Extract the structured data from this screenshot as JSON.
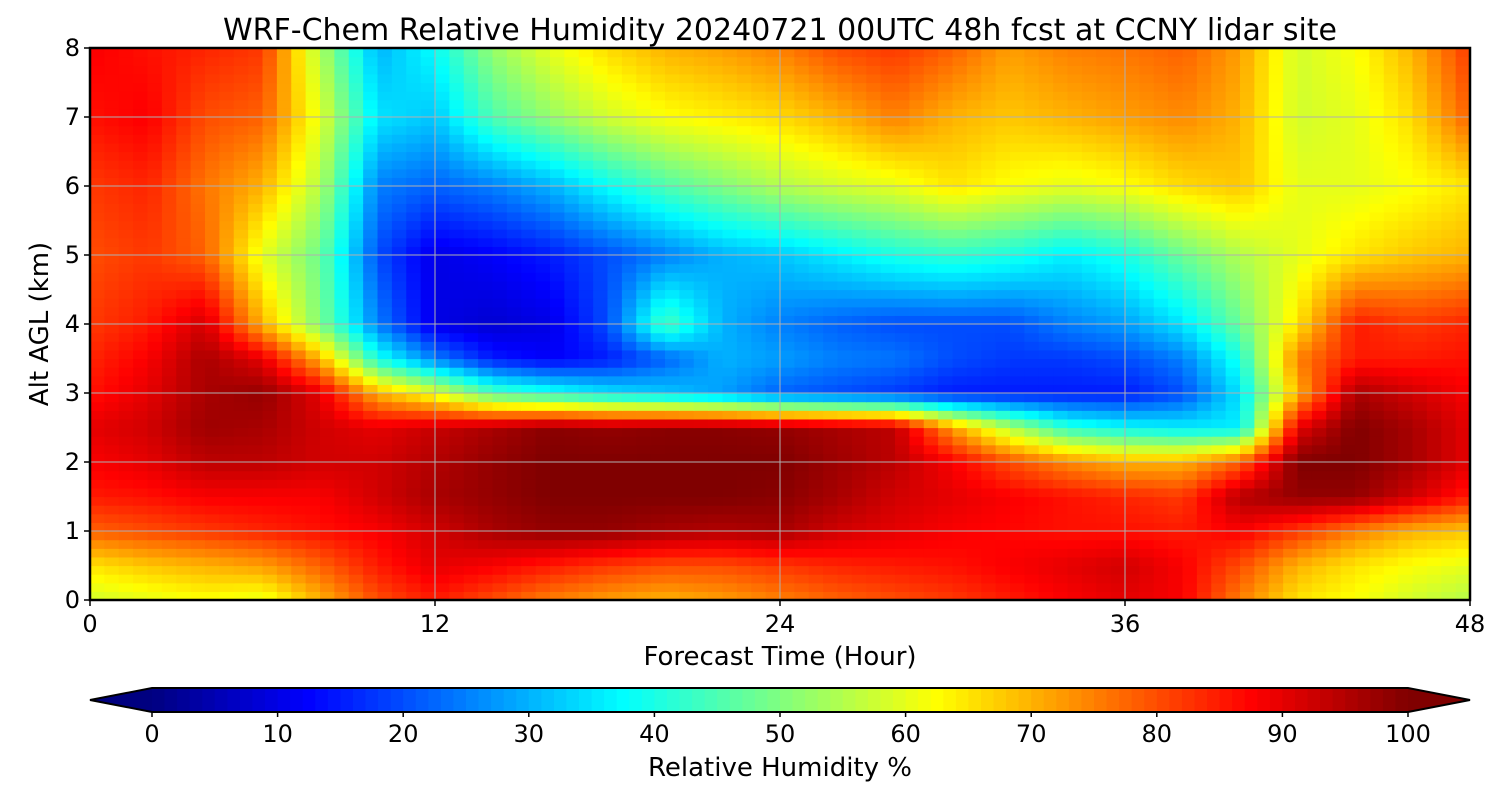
{
  "chart_data": {
    "type": "heatmap",
    "title": "WRF-Chem Relative Humidity 20240721 00UTC 48h fcst at CCNY lidar site",
    "xlabel": "Forecast Time (Hour)",
    "ylabel": "Alt AGL (km)",
    "xlim": [
      0,
      48
    ],
    "ylim": [
      0,
      8
    ],
    "x_ticks": [
      0,
      12,
      24,
      36,
      48
    ],
    "y_ticks": [
      0,
      1,
      2,
      3,
      4,
      5,
      6,
      7,
      8
    ],
    "grid": true,
    "colormap": "jet",
    "colorbar": {
      "label": "Relative Humidity %",
      "ticks": [
        0,
        10,
        20,
        30,
        40,
        50,
        60,
        70,
        80,
        90,
        100
      ],
      "range": [
        0,
        100
      ],
      "extend": "both",
      "orientation": "horizontal"
    },
    "x": [
      0,
      2,
      4,
      6,
      8,
      10,
      12,
      14,
      16,
      18,
      20,
      22,
      24,
      26,
      28,
      30,
      32,
      34,
      36,
      38,
      40,
      42,
      44,
      46,
      48
    ],
    "y": [
      0,
      0.5,
      1,
      1.5,
      2,
      2.5,
      3,
      3.5,
      4,
      5,
      6,
      7,
      8
    ],
    "values": [
      [
        58,
        60,
        62,
        60,
        70,
        80,
        85,
        80,
        75,
        72,
        70,
        72,
        75,
        78,
        80,
        82,
        85,
        88,
        90,
        88,
        75,
        65,
        62,
        58,
        55
      ],
      [
        65,
        68,
        70,
        72,
        78,
        85,
        90,
        88,
        85,
        82,
        80,
        80,
        82,
        84,
        85,
        86,
        88,
        90,
        92,
        88,
        80,
        70,
        65,
        62,
        60
      ],
      [
        78,
        80,
        82,
        84,
        86,
        88,
        92,
        96,
        98,
        98,
        96,
        95,
        96,
        92,
        90,
        88,
        87,
        86,
        86,
        85,
        88,
        82,
        75,
        70,
        68
      ],
      [
        85,
        86,
        88,
        88,
        88,
        92,
        96,
        98,
        100,
        100,
        100,
        100,
        99,
        96,
        92,
        90,
        88,
        86,
        84,
        82,
        95,
        98,
        98,
        92,
        85
      ],
      [
        88,
        90,
        94,
        94,
        92,
        92,
        95,
        98,
        100,
        100,
        100,
        100,
        100,
        97,
        94,
        88,
        80,
        74,
        70,
        70,
        78,
        100,
        100,
        96,
        90
      ],
      [
        90,
        92,
        97,
        96,
        92,
        90,
        93,
        96,
        99,
        98,
        99,
        99,
        98,
        96,
        94,
        72,
        55,
        42,
        38,
        36,
        36,
        90,
        100,
        96,
        90
      ],
      [
        86,
        90,
        96,
        98,
        90,
        70,
        60,
        45,
        40,
        35,
        32,
        28,
        22,
        20,
        18,
        15,
        15,
        15,
        15,
        20,
        35,
        70,
        96,
        92,
        88
      ],
      [
        84,
        88,
        96,
        90,
        70,
        40,
        25,
        15,
        12,
        15,
        22,
        30,
        28,
        25,
        24,
        20,
        18,
        18,
        20,
        25,
        40,
        75,
        85,
        85,
        86
      ],
      [
        82,
        85,
        92,
        70,
        50,
        25,
        10,
        8,
        10,
        20,
        45,
        30,
        25,
        22,
        20,
        20,
        20,
        25,
        28,
        35,
        48,
        65,
        85,
        82,
        84
      ],
      [
        80,
        82,
        78,
        60,
        48,
        20,
        10,
        12,
        15,
        20,
        25,
        30,
        32,
        36,
        40,
        42,
        40,
        36,
        40,
        48,
        55,
        60,
        65,
        68,
        70
      ],
      [
        82,
        84,
        76,
        70,
        55,
        25,
        22,
        25,
        30,
        38,
        45,
        50,
        55,
        58,
        60,
        65,
        62,
        60,
        62,
        66,
        68,
        60,
        60,
        62,
        65
      ],
      [
        86,
        88,
        80,
        78,
        60,
        35,
        32,
        45,
        52,
        58,
        62,
        64,
        66,
        70,
        75,
        70,
        68,
        70,
        72,
        74,
        70,
        58,
        60,
        66,
        78
      ],
      [
        88,
        86,
        84,
        82,
        55,
        30,
        38,
        52,
        60,
        66,
        70,
        72,
        75,
        80,
        82,
        78,
        72,
        75,
        76,
        78,
        72,
        58,
        62,
        70,
        82
      ]
    ]
  }
}
